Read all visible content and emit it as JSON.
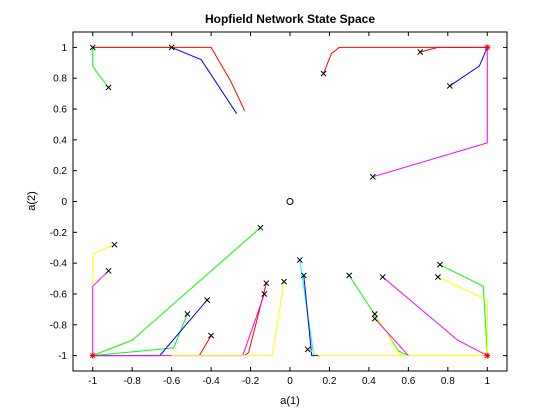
{
  "chart_data": {
    "type": "line",
    "title": "Hopfield Network State Space",
    "xlabel": "a(1)",
    "ylabel": "a(2)",
    "xlim": [
      -1.1,
      1.1
    ],
    "ylim": [
      -1.1,
      1.1
    ],
    "xticks": [
      "-1",
      "-0.8",
      "-0.6",
      "-0.4",
      "-0.2",
      "0",
      "0.2",
      "0.4",
      "0.6",
      "0.8",
      "1"
    ],
    "yticks": [
      "-1",
      "-0.8",
      "-0.6",
      "-0.4",
      "-0.2",
      "0",
      "0.2",
      "0.4",
      "0.6",
      "0.8",
      "1"
    ],
    "grid": false,
    "colors": {
      "red": "#ff0000",
      "green": "#00ff00",
      "blue": "#0000ff",
      "yellow": "#ffff00",
      "magenta": "#ff00ff",
      "cyan": "#00ffff",
      "marker": "#000000",
      "endpoint": "#ff0000"
    },
    "origin_marker": [
      0,
      0
    ],
    "endpoints": [
      [
        1,
        1
      ],
      [
        -1,
        -1
      ],
      [
        1,
        -1
      ]
    ],
    "trajectories": [
      {
        "color": "green",
        "points": [
          [
            -0.92,
            0.74
          ],
          [
            -0.98,
            0.84
          ],
          [
            -1,
            0.88
          ],
          [
            -1,
            1
          ],
          [
            -0.6,
            1
          ]
        ]
      },
      {
        "color": "red",
        "points": [
          [
            -1,
            1
          ],
          [
            -0.5,
            1
          ],
          [
            -0.4,
            1
          ],
          [
            -0.3,
            0.78
          ],
          [
            -0.23,
            0.59
          ]
        ]
      },
      {
        "color": "blue",
        "points": [
          [
            -0.6,
            1
          ],
          [
            -0.45,
            0.92
          ],
          [
            -0.27,
            0.57
          ]
        ]
      },
      {
        "color": "red",
        "points": [
          [
            0.17,
            0.83
          ],
          [
            0.21,
            0.96
          ],
          [
            0.25,
            1
          ],
          [
            0.5,
            1
          ],
          [
            1,
            1
          ]
        ]
      },
      {
        "color": "red",
        "points": [
          [
            0.66,
            0.97
          ],
          [
            0.75,
            1
          ],
          [
            1,
            1
          ]
        ]
      },
      {
        "color": "blue",
        "points": [
          [
            0.81,
            0.75
          ],
          [
            0.96,
            0.88
          ],
          [
            1,
            1
          ]
        ]
      },
      {
        "color": "magenta",
        "points": [
          [
            0.42,
            0.16
          ],
          [
            1,
            0.38
          ],
          [
            1,
            1
          ]
        ]
      },
      {
        "color": "green",
        "points": [
          [
            -0.15,
            -0.17
          ],
          [
            -0.8,
            -0.9
          ],
          [
            -1,
            -1
          ]
        ]
      },
      {
        "color": "yellow",
        "points": [
          [
            -0.89,
            -0.28
          ],
          [
            -1,
            -0.34
          ],
          [
            -1,
            -1
          ]
        ]
      },
      {
        "color": "magenta",
        "points": [
          [
            -0.92,
            -0.45
          ],
          [
            -1,
            -0.55
          ],
          [
            -1,
            -1
          ]
        ]
      },
      {
        "color": "green",
        "points": [
          [
            -0.52,
            -0.73
          ],
          [
            -0.59,
            -0.95
          ],
          [
            -1,
            -1
          ]
        ]
      },
      {
        "color": "blue",
        "points": [
          [
            -0.42,
            -0.64
          ],
          [
            -0.66,
            -1
          ],
          [
            -1,
            -1
          ]
        ]
      },
      {
        "color": "red",
        "points": [
          [
            -0.4,
            -0.87
          ],
          [
            -0.46,
            -1
          ]
        ]
      },
      {
        "color": "red",
        "points": [
          [
            -0.12,
            -0.53
          ],
          [
            -0.21,
            -0.98
          ],
          [
            -0.23,
            -1
          ]
        ]
      },
      {
        "color": "magenta",
        "points": [
          [
            -0.13,
            -0.6
          ],
          [
            -0.24,
            -1
          ],
          [
            -1,
            -1
          ]
        ]
      },
      {
        "color": "yellow",
        "points": [
          [
            -0.03,
            -0.52
          ],
          [
            -0.09,
            -1
          ],
          [
            -0.6,
            -1
          ]
        ]
      },
      {
        "color": "cyan",
        "points": [
          [
            0.05,
            -0.38
          ],
          [
            0.12,
            -1
          ]
        ]
      },
      {
        "color": "blue",
        "points": [
          [
            0.07,
            -0.48
          ],
          [
            0.11,
            -1
          ],
          [
            0.15,
            -1
          ]
        ]
      },
      {
        "color": "yellow",
        "points": [
          [
            0.09,
            -0.96
          ],
          [
            0.15,
            -1
          ],
          [
            1,
            -1
          ]
        ]
      },
      {
        "color": "green",
        "points": [
          [
            0.3,
            -0.48
          ],
          [
            0.55,
            -0.97
          ],
          [
            0.6,
            -1
          ]
        ]
      },
      {
        "color": "yellow",
        "points": [
          [
            0.43,
            -0.73
          ],
          [
            0.56,
            -1
          ],
          [
            1,
            -1
          ]
        ]
      },
      {
        "color": "magenta",
        "points": [
          [
            0.43,
            -0.76
          ],
          [
            0.6,
            -1
          ]
        ]
      },
      {
        "color": "magenta",
        "points": [
          [
            0.47,
            -0.49
          ],
          [
            0.85,
            -0.9
          ],
          [
            1,
            -1
          ]
        ]
      },
      {
        "color": "green",
        "points": [
          [
            0.76,
            -0.41
          ],
          [
            0.98,
            -0.55
          ],
          [
            1,
            -1
          ]
        ]
      },
      {
        "color": "yellow",
        "points": [
          [
            0.75,
            -0.49
          ],
          [
            1,
            -0.64
          ],
          [
            1,
            -1
          ]
        ]
      }
    ]
  }
}
